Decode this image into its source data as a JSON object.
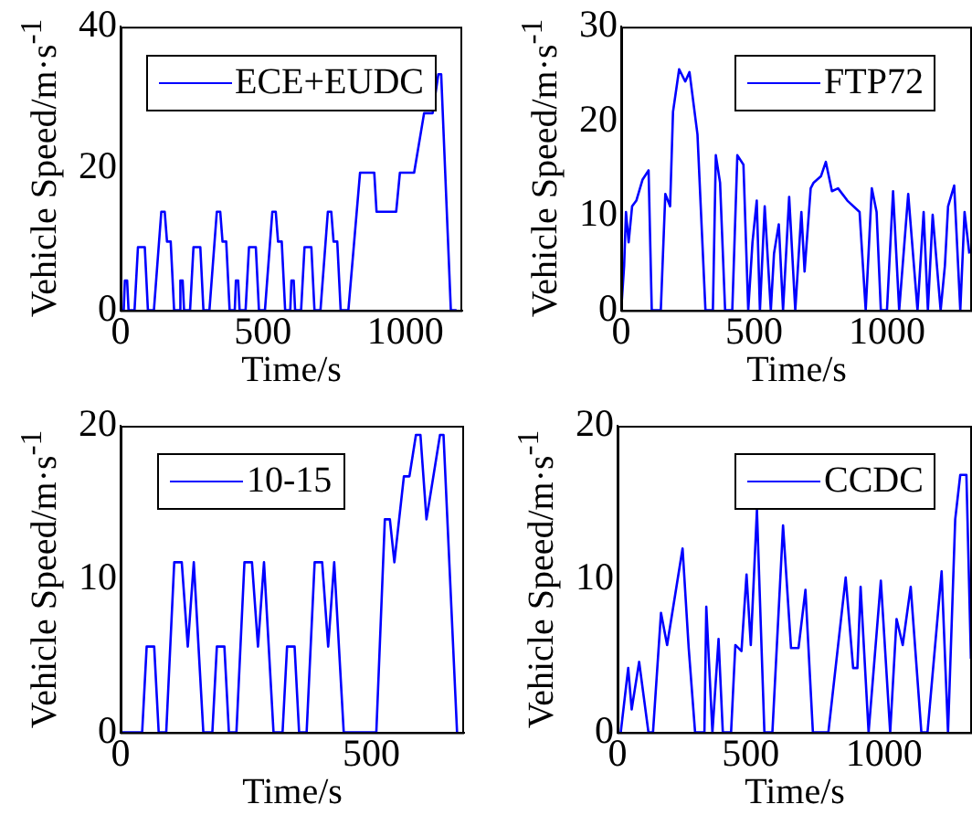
{
  "chart_data": [
    {
      "type": "line",
      "xlabel": "Time/s",
      "ylabel": "Vehicle Speed/m·s$^{-1}$",
      "xlim": [
        0,
        1200
      ],
      "xticks": [
        0,
        500,
        1000
      ],
      "ylim": [
        0,
        40
      ],
      "yticks": [
        0,
        20,
        40
      ],
      "grid": false,
      "legend": "top",
      "marker": "none",
      "series": [
        {
          "name": "ECE+EUDC",
          "color": "#0000ff",
          "x": [
            0,
            11,
            15,
            23,
            28,
            49,
            61,
            85,
            96,
            117,
            143,
            155,
            163,
            176,
            188,
            195,
            206,
            210,
            218,
            223,
            244,
            256,
            280,
            291,
            312,
            338,
            350,
            358,
            371,
            383,
            390,
            401,
            405,
            413,
            418,
            439,
            451,
            475,
            486,
            507,
            533,
            545,
            553,
            566,
            578,
            585,
            596,
            600,
            608,
            613,
            634,
            646,
            670,
            681,
            702,
            728,
            740,
            748,
            761,
            773,
            780,
            800,
            841,
            891,
            899,
            968,
            981,
            1031,
            1066,
            1096,
            1116,
            1126,
            1160,
            1180
          ],
          "values": [
            0,
            0,
            4.2,
            4.2,
            0,
            0,
            8.9,
            8.9,
            0,
            0,
            13.9,
            13.9,
            9.7,
            9.7,
            0,
            0,
            0,
            4.2,
            4.2,
            0,
            0,
            8.9,
            8.9,
            0,
            0,
            13.9,
            13.9,
            9.7,
            9.7,
            0,
            0,
            0,
            4.2,
            4.2,
            0,
            0,
            8.9,
            8.9,
            0,
            0,
            13.9,
            13.9,
            9.7,
            9.7,
            0,
            0,
            0,
            4.2,
            4.2,
            0,
            0,
            8.9,
            8.9,
            0,
            0,
            13.9,
            13.9,
            9.7,
            9.7,
            0,
            0,
            0,
            19.4,
            19.4,
            13.9,
            13.9,
            19.4,
            19.4,
            27.8,
            27.8,
            33.3,
            33.3,
            0,
            0
          ]
        }
      ]
    },
    {
      "type": "line",
      "xlabel": "Time/s",
      "ylabel": "Vehicle Speed/m·s$^{-1}$",
      "xlim": [
        0,
        1320
      ],
      "xticks": [
        0,
        500,
        1000
      ],
      "ylim": [
        0,
        30
      ],
      "yticks": [
        0,
        10,
        20,
        30
      ],
      "grid": false,
      "legend": "top right",
      "marker": "none",
      "series": [
        {
          "name": "FTP72",
          "color": "#0000ff",
          "x": [
            0,
            11,
            18,
            28,
            41,
            57,
            80,
            103,
            115,
            149,
            166,
            184,
            195,
            218,
            241,
            257,
            287,
            317,
            345,
            356,
            372,
            391,
            418,
            437,
            460,
            478,
            494,
            510,
            522,
            540,
            563,
            575,
            593,
            609,
            632,
            655,
            678,
            690,
            713,
            724,
            752,
            770,
            793,
            816,
            851,
            897,
            920,
            943,
            961,
            977,
            1000,
            1023,
            1046,
            1080,
            1115,
            1138,
            1154,
            1172,
            1202,
            1218,
            1230,
            1253,
            1276,
            1292,
            1310
          ],
          "values": [
            0,
            4.7,
            10.4,
            7.2,
            11,
            11.6,
            13.8,
            14.8,
            0,
            0,
            12.3,
            11,
            21,
            25.5,
            24.2,
            25.2,
            18.6,
            0,
            0,
            16.4,
            13.5,
            0,
            0,
            16.4,
            15.4,
            0,
            7.2,
            11.6,
            0,
            11,
            0,
            6,
            9.1,
            0,
            12,
            0,
            10.4,
            4.1,
            12.9,
            13.5,
            14.2,
            15.7,
            12.6,
            12.9,
            11.6,
            10.4,
            0,
            12.9,
            10.4,
            0,
            0,
            12.6,
            0,
            12.3,
            0,
            10.4,
            0,
            10.1,
            0,
            4.7,
            11,
            13.2,
            0,
            10.4,
            6
          ]
        }
      ]
    },
    {
      "type": "line",
      "xlabel": "Time/s",
      "ylabel": "Vehicle Speed/m·s$^{-1}$",
      "xlim": [
        0,
        685
      ],
      "xticks": [
        0,
        500
      ],
      "ylim": [
        0,
        20
      ],
      "yticks": [
        0,
        10,
        20
      ],
      "grid": false,
      "legend": "top left",
      "marker": "none",
      "series": [
        {
          "name": "10-15",
          "color": "#0000ff",
          "x": [
            0,
            43,
            52,
            67,
            76,
            91,
            107,
            122,
            134,
            146,
            165,
            183,
            192,
            207,
            216,
            231,
            247,
            262,
            274,
            286,
            305,
            323,
            332,
            347,
            356,
            371,
            387,
            402,
            414,
            426,
            445,
            510,
            527,
            537,
            546,
            565,
            576,
            589,
            598,
            610,
            637,
            644,
            671
          ],
          "values": [
            0,
            0,
            5.6,
            5.6,
            0,
            0,
            11.1,
            11.1,
            5.6,
            11.1,
            0,
            0,
            5.6,
            5.6,
            0,
            0,
            11.1,
            11.1,
            5.6,
            11.1,
            0,
            0,
            5.6,
            5.6,
            0,
            0,
            11.1,
            11.1,
            5.6,
            11.1,
            0,
            0,
            13.9,
            13.9,
            11.1,
            16.7,
            16.7,
            19.4,
            19.4,
            13.9,
            19.4,
            19.4,
            0
          ]
        }
      ]
    },
    {
      "type": "line",
      "xlabel": "Time/s",
      "ylabel": "Vehicle Speed/m·s$^{-1}$",
      "xlim": [
        0,
        1330
      ],
      "xticks": [
        0,
        500,
        1000
      ],
      "ylim": [
        0,
        20
      ],
      "yticks": [
        0,
        10,
        20
      ],
      "grid": false,
      "legend": "top right",
      "marker": "none",
      "series": [
        {
          "name": "CCDC",
          "color": "#0000ff",
          "x": [
            12,
            40,
            53,
            81,
            116,
            133,
            163,
            186,
            244,
            267,
            291,
            326,
            333,
            356,
            379,
            395,
            426,
            442,
            465,
            484,
            500,
            523,
            551,
            581,
            621,
            651,
            679,
            705,
            733,
            791,
            856,
            884,
            900,
            912,
            942,
            988,
            1023,
            1047,
            1070,
            1100,
            1140,
            1163,
            1216,
            1240,
            1267,
            1286,
            1309,
            1326
          ],
          "values": [
            0,
            4.2,
            1.5,
            4.6,
            0,
            0,
            7.8,
            5.7,
            12,
            5.5,
            0,
            0,
            8.2,
            0,
            6.1,
            0,
            0,
            5.7,
            5.3,
            10.3,
            5.7,
            14.5,
            0,
            0,
            13.5,
            5.5,
            5.5,
            9.3,
            0,
            0,
            10.1,
            4.2,
            4.2,
            9.5,
            0,
            9.9,
            0,
            7.4,
            5.7,
            9.5,
            0,
            0,
            10.5,
            0,
            13.9,
            16.8,
            16.8,
            4.8
          ]
        }
      ]
    }
  ]
}
